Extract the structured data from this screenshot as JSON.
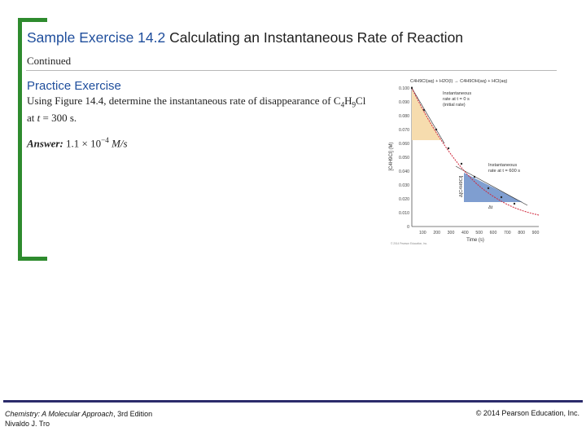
{
  "header": {
    "exercise_number": "Sample Exercise 14.2",
    "exercise_title": "Calculating an Instantaneous Rate of Reaction",
    "continued": "Continued"
  },
  "practice": {
    "heading": "Practice Exercise",
    "question_text": "Using Figure 14.4, determine the instantaneous rate of disappearance of",
    "question_compound_parts": [
      "C",
      "4",
      "H",
      "9",
      "Cl"
    ],
    "question_tail": "at",
    "time_var": "t",
    "time_value": "= 300 s.",
    "answer_label": "Answer:",
    "answer_value": "1.1 × 10",
    "answer_exp": "−4",
    "answer_unit": "M/s"
  },
  "figure": {
    "equation": "C4H9Cl(aq) + H2O(l) → C4H9OH(aq) + HCl(aq)",
    "y_label": "[C4H9Cl] (M)",
    "x_label": "Time (s)",
    "y_ticks": [
      "0.100",
      "0.090",
      "0.080",
      "0.070",
      "0.060",
      "0.050",
      "0.040",
      "0.030",
      "0.020",
      "0.010",
      "0"
    ],
    "x_ticks": [
      "100",
      "200",
      "300",
      "400",
      "500",
      "600",
      "700",
      "800",
      "900"
    ],
    "annotation_initial": [
      "Instantaneous",
      "rate at t = 0 s",
      "(initial rate)"
    ],
    "annotation_later": [
      "Instantaneous",
      "rate at t = 600 s"
    ],
    "delta_conc": "Δ[C4H9Cl]",
    "delta_t": "Δt",
    "credit": "© 2014 Pearson Education, Inc.",
    "colors": {
      "curve": "#d0283c",
      "tangent": "#3a3a3a",
      "initial_fill": "#f6dcae",
      "later_fill": "#7f9ed0"
    }
  },
  "footer": {
    "book_title": "Chemistry: A Molecular Approach",
    "edition": ", 3rd Edition",
    "author": "Nivaldo J. Tro",
    "copyright": "© 2014 Pearson Education, Inc."
  }
}
